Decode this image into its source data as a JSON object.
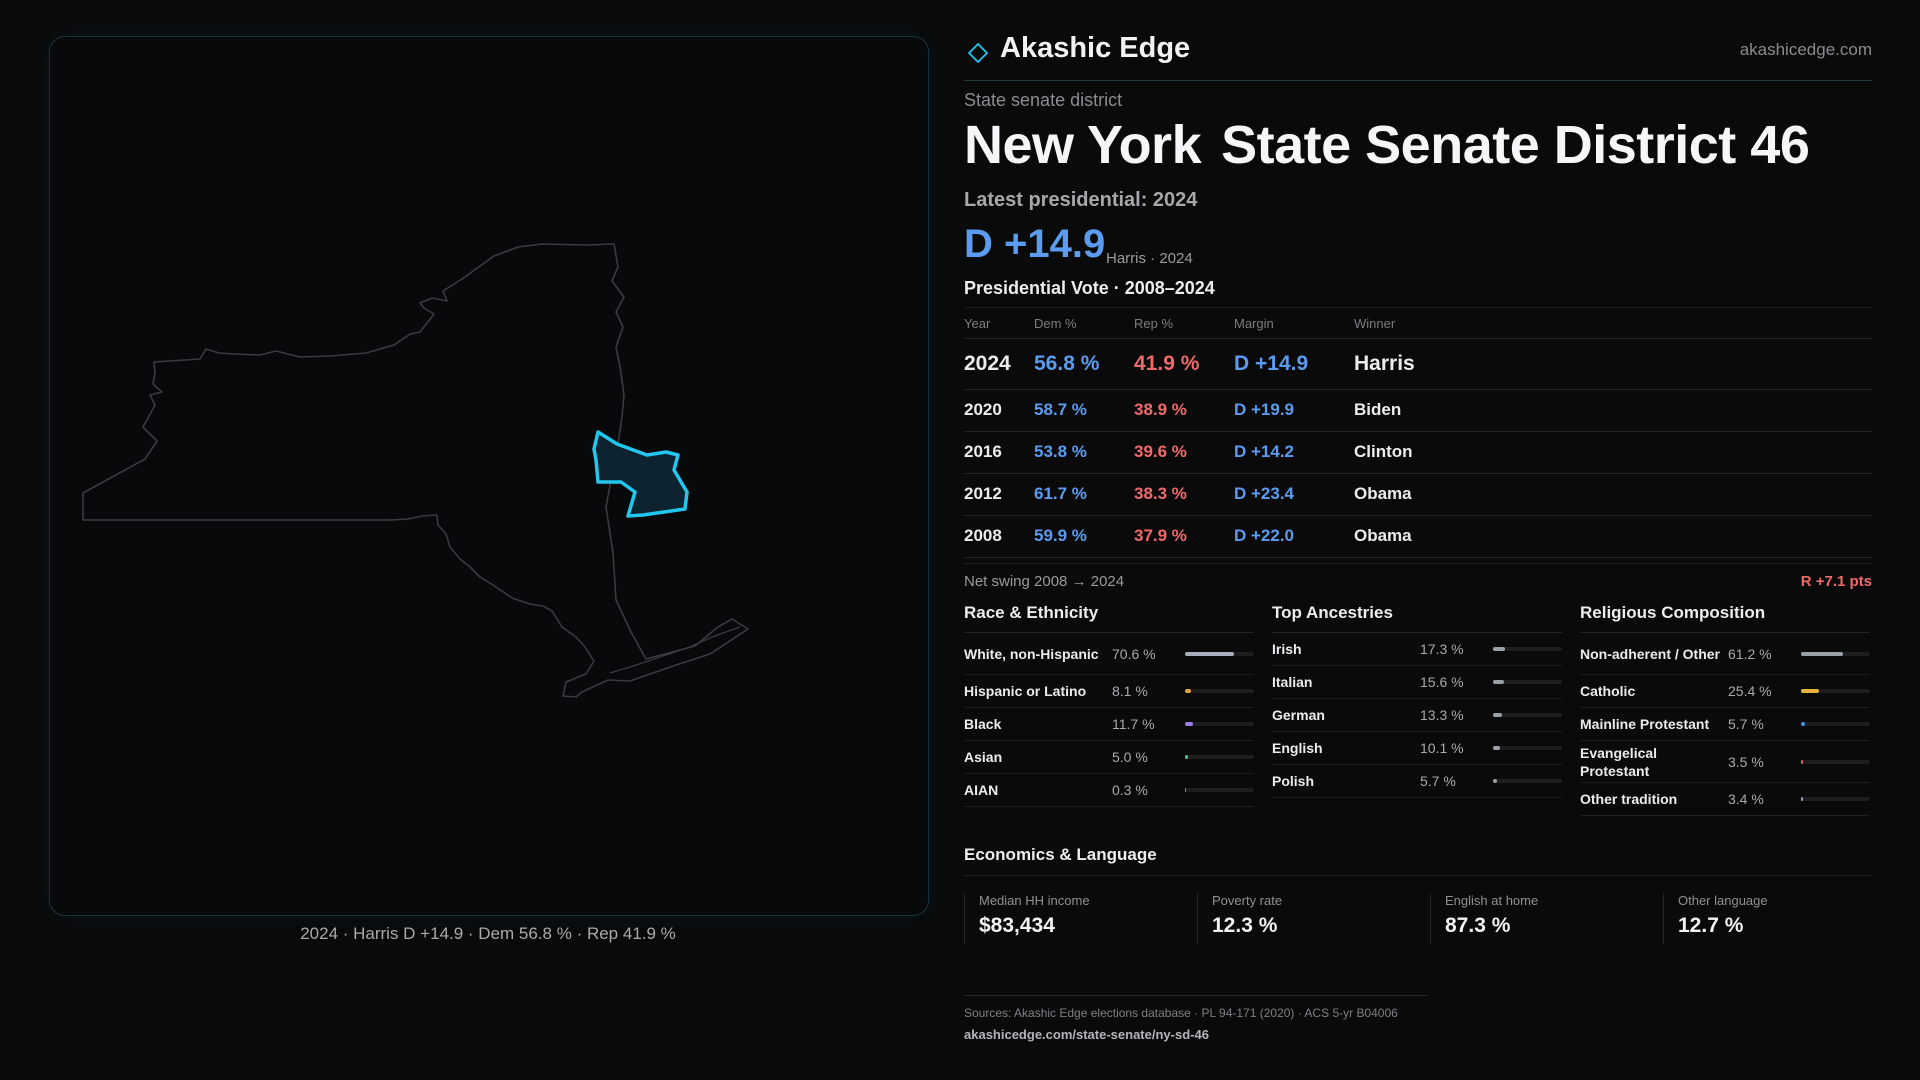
{
  "map": {
    "caption": "2024 · Harris D +14.9 · Dem 56.8 % · Rep 41.9 %",
    "outline_color": "#3a3a40",
    "highlight_color": "#22c6ee"
  },
  "header": {
    "brand": "Akashic Edge",
    "site": "akashicedge.com",
    "logo_icon": "diamond-outline-icon"
  },
  "district": {
    "kind": "State senate district",
    "state": "New York",
    "name": "State Senate District 46",
    "latest_label": "Latest presidential: 2024",
    "margin": "D +14.9",
    "margin_sub": "Harris · 2024"
  },
  "presidential": {
    "title": "Presidential Vote · 2008–2024",
    "headers": [
      "Year",
      "Dem %",
      "Rep %",
      "Margin",
      "Winner"
    ],
    "rows": [
      {
        "year": "2024",
        "dem": "56.8 %",
        "rep": "41.9 %",
        "margin": "D +14.9",
        "winner": "Harris"
      },
      {
        "year": "2020",
        "dem": "58.7 %",
        "rep": "38.9 %",
        "margin": "D +19.9",
        "winner": "Biden"
      },
      {
        "year": "2016",
        "dem": "53.8 %",
        "rep": "39.6 %",
        "margin": "D +14.2",
        "winner": "Clinton"
      },
      {
        "year": "2012",
        "dem": "61.7 %",
        "rep": "38.3 %",
        "margin": "D +23.4",
        "winner": "Obama"
      },
      {
        "year": "2008",
        "dem": "59.9 %",
        "rep": "37.9 %",
        "margin": "D +22.0",
        "winner": "Obama"
      }
    ],
    "swing_label": "Net swing 2008 → 2024",
    "swing_value": "R +7.1 pts"
  },
  "race": {
    "title": "Race & Ethnicity",
    "items": [
      {
        "label": "White, non-Hispanic",
        "value": "70.6 %",
        "pct": 70.6,
        "color": "#a8aebb"
      },
      {
        "label": "Hispanic or Latino",
        "value": "8.1 %",
        "pct": 8.1,
        "color": "#e2a43a"
      },
      {
        "label": "Black",
        "value": "11.7 %",
        "pct": 11.7,
        "color": "#9a7be6"
      },
      {
        "label": "Asian",
        "value": "5.0 %",
        "pct": 5.0,
        "color": "#3fc48a"
      },
      {
        "label": "AIAN",
        "value": "0.3 %",
        "pct": 0.3,
        "color": "#d86b6b"
      }
    ]
  },
  "ancestry": {
    "title": "Top Ancestries",
    "items": [
      {
        "label": "Irish",
        "value": "17.3 %",
        "pct": 17.3,
        "color": "#9aa0aa"
      },
      {
        "label": "Italian",
        "value": "15.6 %",
        "pct": 15.6,
        "color": "#9aa0aa"
      },
      {
        "label": "German",
        "value": "13.3 %",
        "pct": 13.3,
        "color": "#9aa0aa"
      },
      {
        "label": "English",
        "value": "10.1 %",
        "pct": 10.1,
        "color": "#9aa0aa"
      },
      {
        "label": "Polish",
        "value": "5.7 %",
        "pct": 5.7,
        "color": "#9aa0aa"
      }
    ]
  },
  "religion": {
    "title": "Religious Composition",
    "items": [
      {
        "label": "Non-adherent / Other",
        "value": "61.2 %",
        "pct": 61.2,
        "color": "#9aa0aa"
      },
      {
        "label": "Catholic",
        "value": "25.4 %",
        "pct": 25.4,
        "color": "#e8b23a"
      },
      {
        "label": "Mainline Protestant",
        "value": "5.7 %",
        "pct": 5.7,
        "color": "#4f8fe6"
      },
      {
        "label": "Evangelical Protestant",
        "value": "3.5 %",
        "pct": 3.5,
        "color": "#e06060"
      },
      {
        "label": "Other tradition",
        "value": "3.4 %",
        "pct": 3.4,
        "color": "#9aa0aa"
      }
    ]
  },
  "economics": {
    "title": "Economics & Language",
    "cells": [
      {
        "label": "Median HH income",
        "value": "$83,434"
      },
      {
        "label": "Poverty rate",
        "value": "12.3 %"
      },
      {
        "label": "English at home",
        "value": "87.3 %"
      },
      {
        "label": "Other language",
        "value": "12.7 %"
      }
    ]
  },
  "footer": {
    "sources": "Sources: Akashic Edge elections database · PL 94-171 (2020) · ACS 5-yr B04006",
    "url": "akashicedge.com/state-senate/ny-sd-46"
  }
}
